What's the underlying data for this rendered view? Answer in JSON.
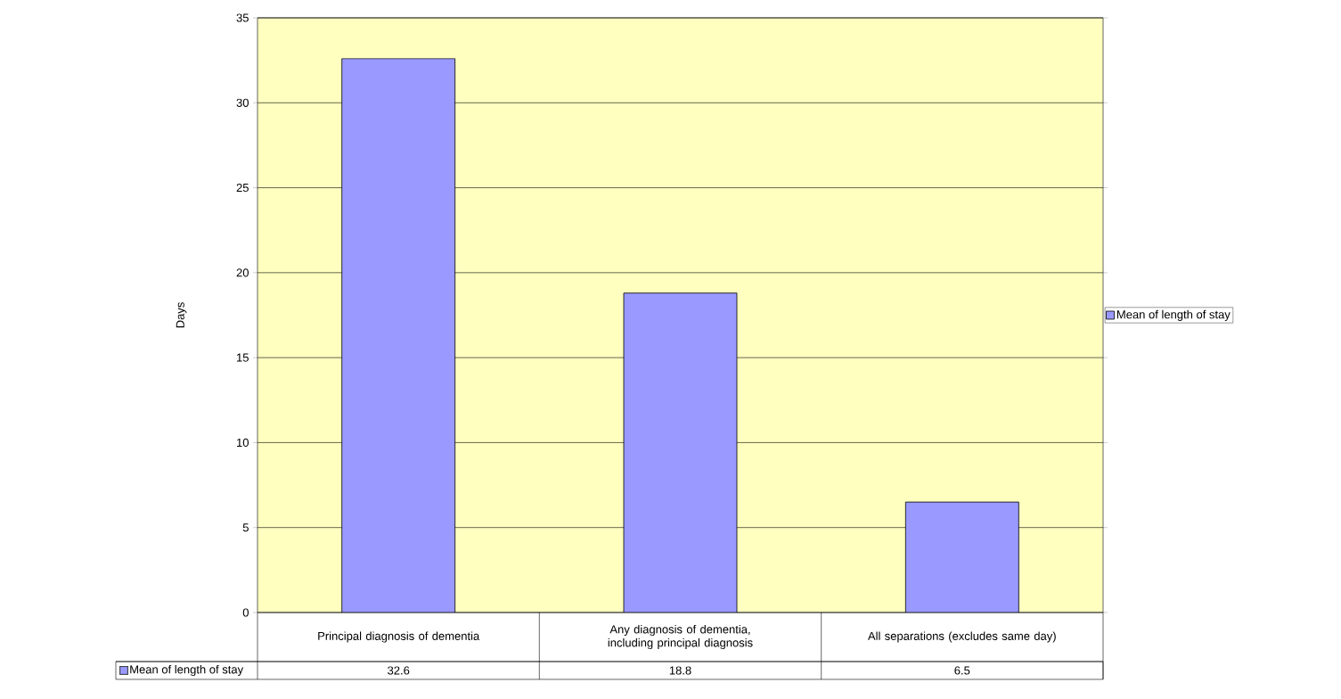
{
  "chart_data": {
    "type": "bar",
    "ylabel": "Days",
    "categories": [
      "Principal diagnosis of dementia",
      "Any diagnosis of dementia, including principal diagnosis",
      "All separations (excludes same day)"
    ],
    "series": [
      {
        "name": "Mean of length of stay",
        "color": "#9999ff",
        "values": [
          32.6,
          18.8,
          6.5
        ]
      }
    ],
    "ylim": [
      0,
      35
    ],
    "yticks": [
      0,
      5,
      10,
      15,
      20,
      25,
      30,
      35
    ],
    "grid": "y",
    "legend": "right",
    "data_labels": true
  }
}
